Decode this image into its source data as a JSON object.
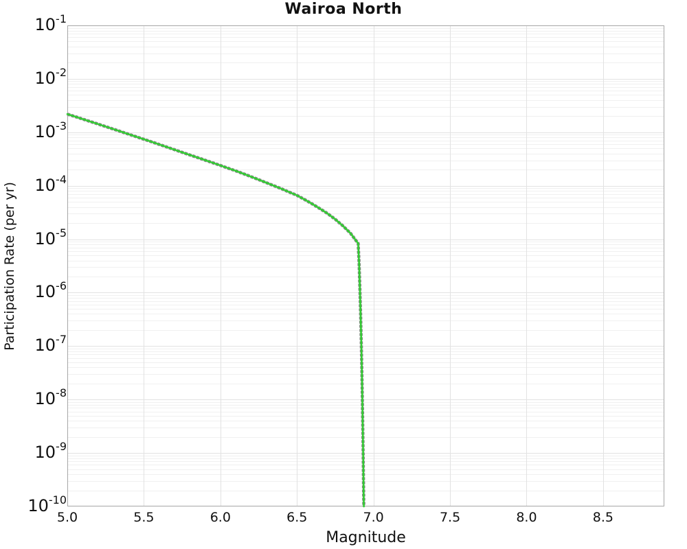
{
  "title": "Wairoa North",
  "colors": {
    "line": "#33cc33",
    "marker": "#858585",
    "grid_major": "#e2e2e2",
    "grid_minor": "#f0f0f0",
    "border": "#a6a6a6",
    "text": "#111111"
  },
  "chart_data": {
    "type": "line",
    "title": "Wairoa North",
    "xlabel": "Magnitude",
    "ylabel": "Participation Rate (per yr)",
    "xlim": [
      5.0,
      8.9
    ],
    "ylim": [
      1e-10,
      0.1
    ],
    "y_scale": "log",
    "grid": "horizontal log minor + major gridlines, vertical major gridlines",
    "legend": "none",
    "x_ticks": [
      {
        "label": "5.0",
        "value": 5.0
      },
      {
        "label": "5.5",
        "value": 5.5
      },
      {
        "label": "6.0",
        "value": 6.0
      },
      {
        "label": "6.5",
        "value": 6.5
      },
      {
        "label": "7.0",
        "value": 7.0
      },
      {
        "label": "7.5",
        "value": 7.5
      },
      {
        "label": "8.0",
        "value": 8.0
      },
      {
        "label": "8.5",
        "value": 8.5
      }
    ],
    "y_ticks": [
      {
        "base": "10",
        "exp": "-1",
        "value": 0.1
      },
      {
        "base": "10",
        "exp": "-2",
        "value": 0.01
      },
      {
        "base": "10",
        "exp": "-3",
        "value": 0.001
      },
      {
        "base": "10",
        "exp": "-4",
        "value": 0.0001
      },
      {
        "base": "10",
        "exp": "-5",
        "value": 1e-05
      },
      {
        "base": "10",
        "exp": "-6",
        "value": 1e-06
      },
      {
        "base": "10",
        "exp": "-7",
        "value": 1e-07
      },
      {
        "base": "10",
        "exp": "-8",
        "value": 1e-08
      },
      {
        "base": "10",
        "exp": "-9",
        "value": 1e-09
      },
      {
        "base": "10",
        "exp": "-10",
        "value": 1e-10
      }
    ],
    "series": [
      {
        "name": "participation-rate",
        "style": "solid green line over dense gray square markers",
        "points": [
          [
            5.0,
            0.00219
          ],
          [
            5.05,
            0.00197
          ],
          [
            5.1,
            0.00177
          ],
          [
            5.15,
            0.00159
          ],
          [
            5.2,
            0.00143
          ],
          [
            5.25,
            0.00128
          ],
          [
            5.3,
            0.00115
          ],
          [
            5.35,
            0.00103
          ],
          [
            5.4,
            0.000923
          ],
          [
            5.45,
            0.000826
          ],
          [
            5.5,
            0.000741
          ],
          [
            5.55,
            0.000664
          ],
          [
            5.6,
            0.000593
          ],
          [
            5.65,
            0.00053
          ],
          [
            5.7,
            0.000473
          ],
          [
            5.75,
            0.000422
          ],
          [
            5.8,
            0.000377
          ],
          [
            5.85,
            0.000337
          ],
          [
            5.9,
            0.000301
          ],
          [
            5.95,
            0.000269
          ],
          [
            6.0,
            0.00024
          ],
          [
            6.05,
            0.000213
          ],
          [
            6.1,
            0.00019
          ],
          [
            6.15,
            0.000168
          ],
          [
            6.2,
            0.000148
          ],
          [
            6.25,
            0.00013
          ],
          [
            6.3,
            0.000114
          ],
          [
            6.35,
            0.0001
          ],
          [
            6.4,
            8.75e-05
          ],
          [
            6.45,
            7.6e-05
          ],
          [
            6.5,
            6.61e-05
          ],
          [
            6.55,
            5.53e-05
          ],
          [
            6.6,
            4.57e-05
          ],
          [
            6.65,
            3.73e-05
          ],
          [
            6.7,
            3.02e-05
          ],
          [
            6.75,
            2.36e-05
          ],
          [
            6.8,
            1.78e-05
          ],
          [
            6.85,
            1.29e-05
          ],
          [
            6.9,
            8.32e-06
          ],
          [
            6.906,
            3.55e-06
          ],
          [
            6.911,
            1.26e-06
          ],
          [
            6.916,
            3.98e-07
          ],
          [
            6.92,
            1.26e-07
          ],
          [
            6.924,
            3.55e-08
          ],
          [
            6.927,
            1.12e-08
          ],
          [
            6.93,
            3.16e-09
          ],
          [
            6.933,
            7.94e-10
          ],
          [
            6.935,
            2.51e-10
          ],
          [
            6.937,
            1e-10
          ]
        ]
      }
    ]
  }
}
